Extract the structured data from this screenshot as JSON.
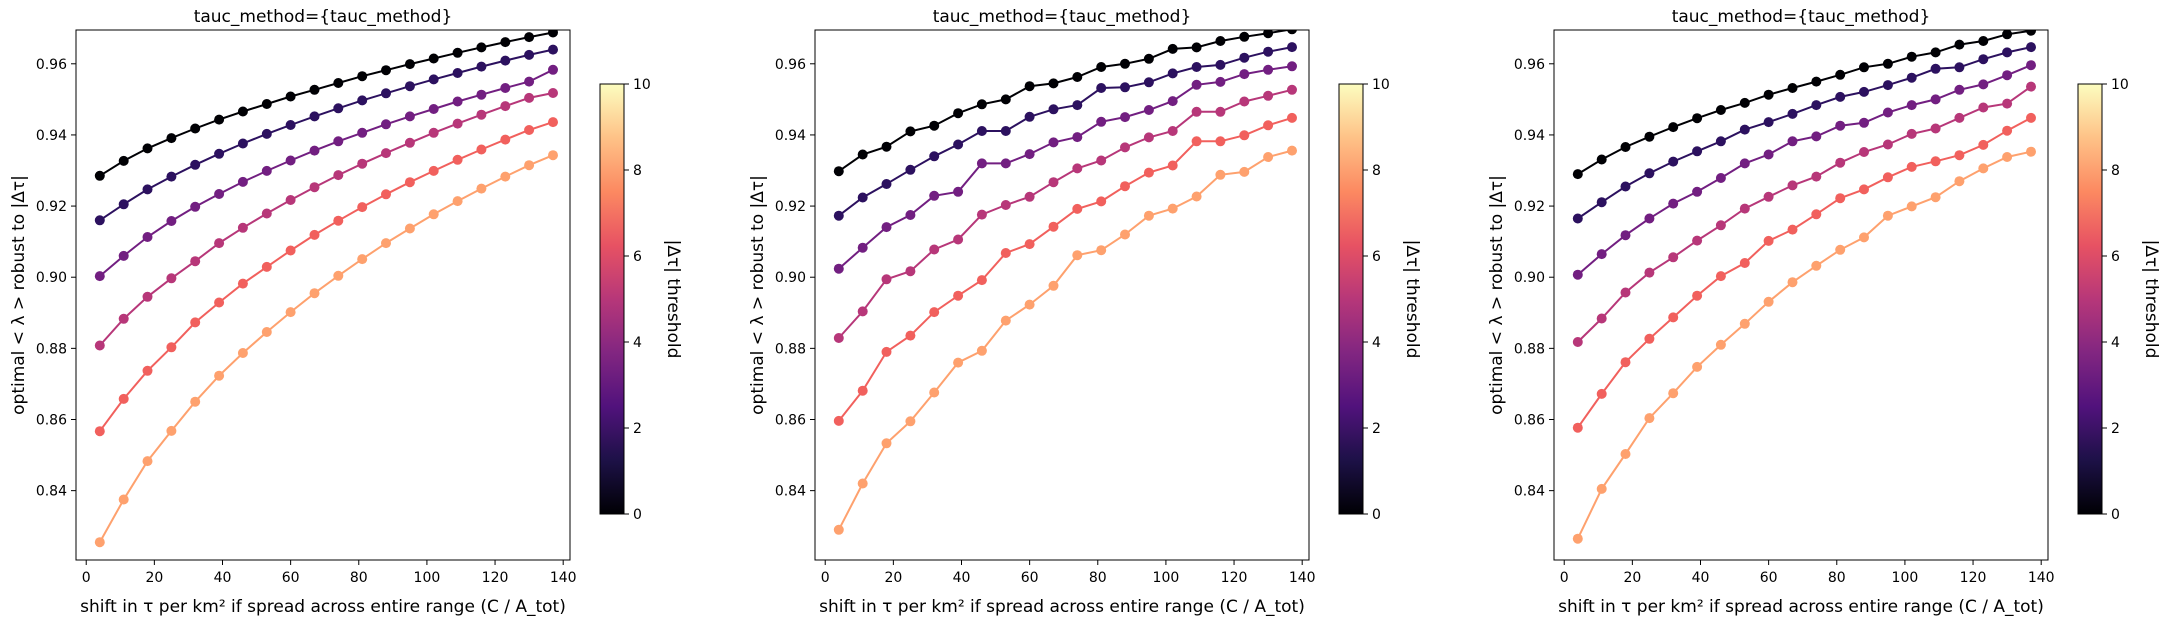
{
  "palette": [
    "#000004",
    "#2c115f",
    "#721f81",
    "#b73779",
    "#f1605d",
    "#fea16e",
    "#fcfdbf"
  ],
  "colorbar_stops": [
    "#000004",
    "#1d1147",
    "#51127c",
    "#822681",
    "#b73779",
    "#e75263",
    "#fc8961",
    "#fec287",
    "#fcfdbf"
  ],
  "chart_data": [
    {
      "type": "line",
      "title": "tauc_method={tauc_method}",
      "xlabel": "shift in τ per km² if spread across entire range (C / A_tot)",
      "ylabel": "optimal < λ >  robust to |Δτ|",
      "xlim": [
        -3,
        142
      ],
      "ylim": [
        0.8205,
        0.9695
      ],
      "xticks": [
        "0",
        "20",
        "40",
        "60",
        "80",
        "100",
        "120",
        "140"
      ],
      "yticks": [
        "0.84",
        "0.86",
        "0.88",
        "0.90",
        "0.92",
        "0.94",
        "0.96"
      ],
      "colorbar": {
        "label": "|Δτ| threshold",
        "range": [
          0,
          10
        ],
        "ticks": [
          "0",
          "2",
          "4",
          "6",
          "8",
          "10"
        ]
      },
      "x": [
        4,
        11,
        18,
        25,
        32,
        39,
        46,
        53,
        60,
        67,
        74,
        81,
        88,
        95,
        102,
        109,
        116,
        123,
        130,
        137
      ],
      "series": [
        {
          "values": [
            0.9285,
            0.9327,
            0.9362,
            0.9391,
            0.9418,
            0.9443,
            0.9466,
            0.9487,
            0.9508,
            0.9527,
            0.9546,
            0.9565,
            0.9582,
            0.9599,
            0.9615,
            0.9631,
            0.9646,
            0.9661,
            0.9675,
            0.9688
          ]
        },
        {
          "values": [
            0.916,
            0.9205,
            0.9247,
            0.9283,
            0.9316,
            0.9347,
            0.9376,
            0.9403,
            0.9428,
            0.9452,
            0.9475,
            0.9497,
            0.9517,
            0.9537,
            0.9556,
            0.9574,
            0.9592,
            0.9609,
            0.9625,
            0.964
          ]
        },
        {
          "values": [
            0.9003,
            0.906,
            0.9113,
            0.9158,
            0.9198,
            0.9234,
            0.9268,
            0.9299,
            0.9328,
            0.9356,
            0.9382,
            0.9406,
            0.943,
            0.9452,
            0.9473,
            0.9494,
            0.9513,
            0.9532,
            0.955,
            0.9583
          ]
        },
        {
          "values": [
            0.8808,
            0.8883,
            0.8945,
            0.8997,
            0.9045,
            0.9096,
            0.9139,
            0.9179,
            0.9217,
            0.9253,
            0.9287,
            0.9319,
            0.9349,
            0.9378,
            0.9406,
            0.9432,
            0.9457,
            0.9481,
            0.9504,
            0.9518
          ]
        },
        {
          "values": [
            0.8567,
            0.8658,
            0.8737,
            0.8803,
            0.8873,
            0.8929,
            0.8982,
            0.9029,
            0.9075,
            0.9119,
            0.9159,
            0.9197,
            0.9233,
            0.9267,
            0.9299,
            0.933,
            0.9359,
            0.9387,
            0.9414,
            0.9436
          ]
        },
        {
          "values": [
            0.8255,
            0.8375,
            0.8483,
            0.8568,
            0.865,
            0.8723,
            0.8787,
            0.8846,
            0.8902,
            0.8955,
            0.9004,
            0.9051,
            0.9096,
            0.9137,
            0.9177,
            0.9214,
            0.9249,
            0.9283,
            0.9315,
            0.9343
          ]
        }
      ]
    },
    {
      "type": "line",
      "title": "tauc_method={tauc_method}",
      "xlabel": "shift in τ per km² if spread across entire range (C / A_tot)",
      "ylabel": "optimal < λ >  robust to |Δτ|",
      "xlim": [
        -3,
        142
      ],
      "ylim": [
        0.8205,
        0.9695
      ],
      "xticks": [
        "0",
        "20",
        "40",
        "60",
        "80",
        "100",
        "120",
        "140"
      ],
      "yticks": [
        "0.84",
        "0.86",
        "0.88",
        "0.90",
        "0.92",
        "0.94",
        "0.96"
      ],
      "colorbar": {
        "label": "|Δτ| threshold",
        "range": [
          0,
          10
        ],
        "ticks": [
          "0",
          "2",
          "4",
          "6",
          "8",
          "10"
        ]
      },
      "x": [
        4,
        11,
        18,
        25,
        32,
        39,
        46,
        53,
        60,
        67,
        74,
        81,
        88,
        95,
        102,
        109,
        116,
        123,
        130,
        137
      ],
      "series": [
        {
          "values": [
            0.9298,
            0.9345,
            0.9367,
            0.941,
            0.9426,
            0.9461,
            0.9486,
            0.95,
            0.9537,
            0.9545,
            0.9563,
            0.9591,
            0.96,
            0.9614,
            0.9642,
            0.9646,
            0.9664,
            0.9676,
            0.9686,
            0.9697
          ]
        },
        {
          "values": [
            0.9173,
            0.9224,
            0.9262,
            0.9302,
            0.934,
            0.9373,
            0.9411,
            0.9411,
            0.9451,
            0.9472,
            0.9484,
            0.9532,
            0.9534,
            0.9548,
            0.9573,
            0.9591,
            0.9597,
            0.9617,
            0.9634,
            0.9647
          ]
        },
        {
          "values": [
            0.9024,
            0.9083,
            0.9141,
            0.9175,
            0.9229,
            0.924,
            0.932,
            0.932,
            0.9346,
            0.9379,
            0.9394,
            0.9437,
            0.945,
            0.947,
            0.9495,
            0.9541,
            0.9549,
            0.9571,
            0.9583,
            0.9593
          ]
        },
        {
          "values": [
            0.8829,
            0.8904,
            0.8994,
            0.9017,
            0.9078,
            0.9106,
            0.9176,
            0.9203,
            0.9226,
            0.9267,
            0.9306,
            0.9328,
            0.9365,
            0.9393,
            0.9411,
            0.9465,
            0.9465,
            0.9494,
            0.951,
            0.9527
          ]
        },
        {
          "values": [
            0.8596,
            0.8681,
            0.879,
            0.8836,
            0.8902,
            0.8948,
            0.8992,
            0.9068,
            0.9093,
            0.9142,
            0.9192,
            0.9213,
            0.9256,
            0.9294,
            0.9314,
            0.9382,
            0.9382,
            0.9399,
            0.9427,
            0.9448
          ]
        },
        {
          "values": [
            0.829,
            0.842,
            0.8533,
            0.8595,
            0.8676,
            0.876,
            0.8793,
            0.8878,
            0.8923,
            0.8976,
            0.9062,
            0.9076,
            0.912,
            0.9173,
            0.9193,
            0.9227,
            0.9288,
            0.9296,
            0.9338,
            0.9356
          ]
        }
      ]
    },
    {
      "type": "line",
      "title": "tauc_method={tauc_method}",
      "xlabel": "shift in τ per km² if spread across entire range (C / A_tot)",
      "ylabel": "optimal < λ >  robust to |Δτ|",
      "xlim": [
        -3,
        142
      ],
      "ylim": [
        0.8205,
        0.9695
      ],
      "xticks": [
        "0",
        "20",
        "40",
        "60",
        "80",
        "100",
        "120",
        "140"
      ],
      "yticks": [
        "0.84",
        "0.86",
        "0.88",
        "0.90",
        "0.92",
        "0.94",
        "0.96"
      ],
      "colorbar": {
        "label": "|Δτ| threshold",
        "range": [
          0,
          10
        ],
        "ticks": [
          "0",
          "2",
          "4",
          "6",
          "8",
          "10"
        ]
      },
      "x": [
        4,
        11,
        18,
        25,
        32,
        39,
        46,
        53,
        60,
        67,
        74,
        81,
        88,
        95,
        102,
        109,
        116,
        123,
        130,
        137
      ],
      "series": [
        {
          "values": [
            0.929,
            0.9331,
            0.9366,
            0.9395,
            0.9422,
            0.9447,
            0.947,
            0.949,
            0.9513,
            0.9532,
            0.955,
            0.9569,
            0.959,
            0.96,
            0.962,
            0.9632,
            0.9654,
            0.9664,
            0.9683,
            0.9693
          ]
        },
        {
          "values": [
            0.9165,
            0.9211,
            0.9255,
            0.9292,
            0.9325,
            0.9354,
            0.9382,
            0.9415,
            0.9436,
            0.9459,
            0.9484,
            0.9507,
            0.9521,
            0.954,
            0.9561,
            0.9586,
            0.959,
            0.9613,
            0.9632,
            0.9647
          ]
        },
        {
          "values": [
            0.9007,
            0.9065,
            0.9118,
            0.9165,
            0.9207,
            0.924,
            0.9279,
            0.932,
            0.9345,
            0.9382,
            0.9396,
            0.9426,
            0.9434,
            0.9463,
            0.9484,
            0.95,
            0.9527,
            0.9542,
            0.9568,
            0.9596
          ]
        },
        {
          "values": [
            0.8818,
            0.8884,
            0.8957,
            0.9013,
            0.9056,
            0.9103,
            0.9146,
            0.9193,
            0.9226,
            0.9258,
            0.9283,
            0.9322,
            0.9352,
            0.9373,
            0.9403,
            0.9418,
            0.9448,
            0.9477,
            0.9488,
            0.9536
          ]
        },
        {
          "values": [
            0.8577,
            0.8672,
            0.8761,
            0.8827,
            0.8887,
            0.8948,
            0.9003,
            0.904,
            0.9102,
            0.9134,
            0.9177,
            0.9222,
            0.9247,
            0.9281,
            0.931,
            0.9326,
            0.9343,
            0.9372,
            0.9412,
            0.9448
          ]
        },
        {
          "values": [
            0.8265,
            0.8405,
            0.8503,
            0.8604,
            0.8674,
            0.8748,
            0.881,
            0.8869,
            0.8931,
            0.8986,
            0.9032,
            0.9077,
            0.9112,
            0.9173,
            0.9199,
            0.9225,
            0.927,
            0.9306,
            0.9338,
            0.9353
          ]
        }
      ]
    }
  ]
}
